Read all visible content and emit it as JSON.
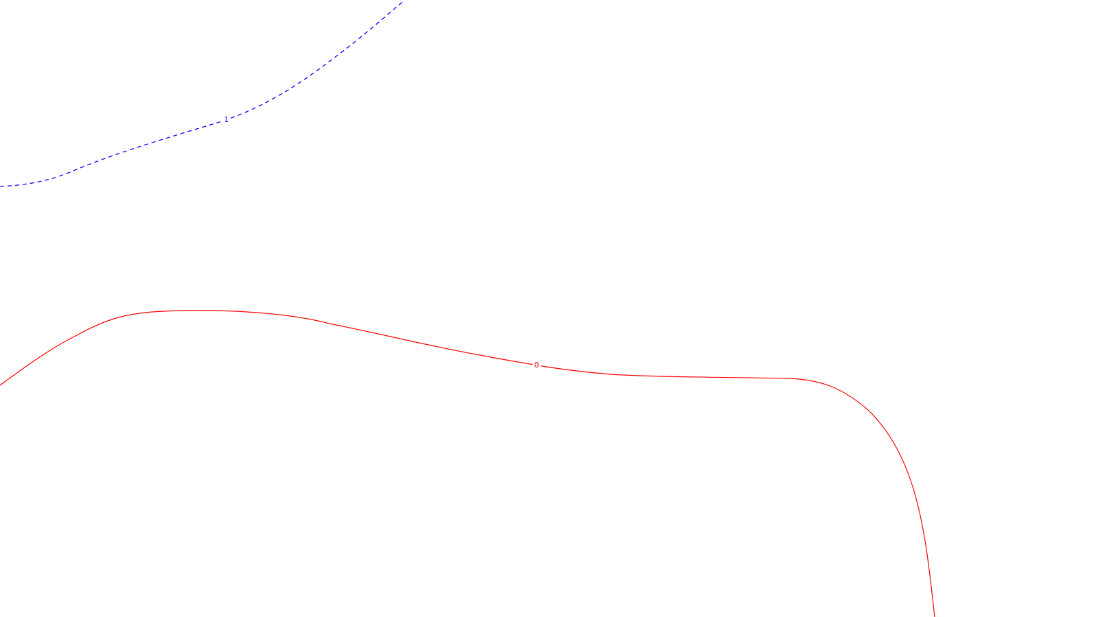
{
  "map": {
    "background": "#ffffff",
    "contours": [
      {
        "id": "contour-1",
        "label": "1",
        "color": "#0000ff",
        "style": "dashed"
      },
      {
        "id": "contour-0",
        "label": "0",
        "color": "#ff0000",
        "style": "solid"
      }
    ]
  }
}
